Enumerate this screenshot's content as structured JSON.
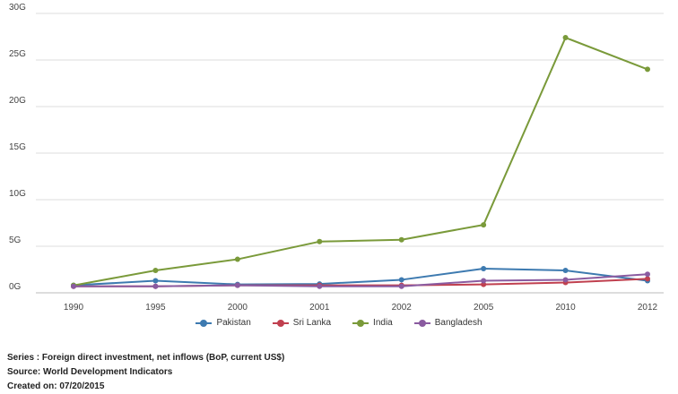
{
  "chart_data": {
    "type": "line",
    "categories": [
      "1990",
      "1995",
      "2000",
      "2001",
      "2002",
      "2005",
      "2010",
      "2012"
    ],
    "y_ticks": [
      "0G",
      "5G",
      "10G",
      "15G",
      "20G",
      "25G",
      "30G"
    ],
    "ylim": [
      0,
      30
    ],
    "grid": true,
    "legend_position": "bottom",
    "series": [
      {
        "name": "Pakistan",
        "color": "#3d7ab0",
        "values": [
          0.8,
          1.3,
          0.9,
          0.95,
          1.4,
          2.6,
          2.4,
          1.3
        ]
      },
      {
        "name": "Sri Lanka",
        "color": "#c0404f",
        "values": [
          0.7,
          0.7,
          0.8,
          0.8,
          0.8,
          0.9,
          1.1,
          1.5
        ]
      },
      {
        "name": "India",
        "color": "#7a9a3a",
        "values": [
          0.8,
          2.4,
          3.6,
          5.5,
          5.7,
          7.3,
          27.4,
          24.0
        ]
      },
      {
        "name": "Bangladesh",
        "color": "#8a5ba0",
        "values": [
          0.7,
          0.7,
          0.8,
          0.7,
          0.7,
          1.3,
          1.4,
          2.0
        ]
      }
    ]
  },
  "notes": {
    "series_line": "Series : Foreign direct investment, net inflows (BoP, current US$)",
    "source_line": "Source: World Development Indicators",
    "created_line": "Created on: 07/20/2015"
  }
}
